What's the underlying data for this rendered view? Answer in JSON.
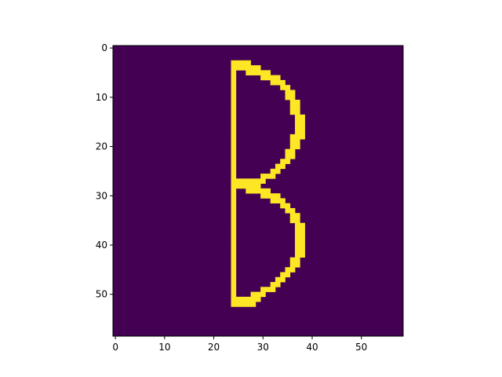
{
  "chart_data": {
    "type": "heatmap",
    "title": "",
    "xlabel": "",
    "ylabel": "",
    "grid": false,
    "shape": [
      59,
      59
    ],
    "colormap": "viridis",
    "xlim": [
      -0.5,
      58.5
    ],
    "ylim": [
      58.5,
      -0.5
    ],
    "x_ticks": [
      0,
      10,
      20,
      30,
      40,
      50
    ],
    "y_ticks": [
      0,
      10,
      20,
      30,
      40,
      50
    ],
    "x_tick_labels": [
      "0",
      "10",
      "20",
      "30",
      "40",
      "50"
    ],
    "y_tick_labels": [
      "0",
      "10",
      "20",
      "30",
      "40",
      "50"
    ],
    "values_legend": {
      "0": "background",
      "1": "stroke"
    },
    "nonzero_rows": [
      {
        "row": 3,
        "cols": [
          24,
          25,
          26,
          27
        ]
      },
      {
        "row": 4,
        "cols": [
          24,
          25,
          26,
          27,
          28,
          29
        ]
      },
      {
        "row": 5,
        "cols": [
          24,
          27,
          28,
          29,
          30,
          31
        ]
      },
      {
        "row": 6,
        "cols": [
          24,
          30,
          31,
          32,
          33
        ]
      },
      {
        "row": 7,
        "cols": [
          24,
          32,
          33,
          34
        ]
      },
      {
        "row": 8,
        "cols": [
          24,
          34,
          35
        ]
      },
      {
        "row": 9,
        "cols": [
          24,
          35,
          36
        ]
      },
      {
        "row": 10,
        "cols": [
          24,
          35,
          36
        ]
      },
      {
        "row": 11,
        "cols": [
          24,
          36,
          37
        ]
      },
      {
        "row": 12,
        "cols": [
          24,
          36,
          37
        ]
      },
      {
        "row": 13,
        "cols": [
          24,
          36,
          37
        ]
      },
      {
        "row": 14,
        "cols": [
          24,
          37,
          38
        ]
      },
      {
        "row": 15,
        "cols": [
          24,
          37,
          38
        ]
      },
      {
        "row": 16,
        "cols": [
          24,
          37,
          38
        ]
      },
      {
        "row": 17,
        "cols": [
          24,
          37,
          38
        ]
      },
      {
        "row": 18,
        "cols": [
          24,
          36,
          37,
          38
        ]
      },
      {
        "row": 19,
        "cols": [
          24,
          36,
          37
        ]
      },
      {
        "row": 20,
        "cols": [
          24,
          36,
          37
        ]
      },
      {
        "row": 21,
        "cols": [
          24,
          35,
          36
        ]
      },
      {
        "row": 22,
        "cols": [
          24,
          35,
          36
        ]
      },
      {
        "row": 23,
        "cols": [
          24,
          34,
          35
        ]
      },
      {
        "row": 24,
        "cols": [
          24,
          33,
          34
        ]
      },
      {
        "row": 25,
        "cols": [
          24,
          32,
          33
        ]
      },
      {
        "row": 26,
        "cols": [
          24,
          30,
          31,
          32
        ]
      },
      {
        "row": 27,
        "cols": [
          24,
          25,
          26,
          27,
          28,
          29,
          30
        ]
      },
      {
        "row": 28,
        "cols": [
          24,
          25,
          26,
          27,
          28,
          29
        ]
      },
      {
        "row": 29,
        "cols": [
          24,
          27,
          28,
          29,
          30,
          31
        ]
      },
      {
        "row": 30,
        "cols": [
          24,
          30,
          31,
          32,
          33
        ]
      },
      {
        "row": 31,
        "cols": [
          24,
          32,
          33,
          34
        ]
      },
      {
        "row": 32,
        "cols": [
          24,
          34,
          35
        ]
      },
      {
        "row": 33,
        "cols": [
          24,
          35,
          36
        ]
      },
      {
        "row": 34,
        "cols": [
          24,
          36,
          37
        ]
      },
      {
        "row": 35,
        "cols": [
          24,
          36,
          37
        ]
      },
      {
        "row": 36,
        "cols": [
          24,
          37,
          38
        ]
      },
      {
        "row": 37,
        "cols": [
          24,
          37,
          38
        ]
      },
      {
        "row": 38,
        "cols": [
          24,
          37,
          38
        ]
      },
      {
        "row": 39,
        "cols": [
          24,
          37,
          38
        ]
      },
      {
        "row": 40,
        "cols": [
          24,
          37,
          38
        ]
      },
      {
        "row": 41,
        "cols": [
          24,
          37,
          38
        ]
      },
      {
        "row": 42,
        "cols": [
          24,
          37,
          38
        ]
      },
      {
        "row": 43,
        "cols": [
          24,
          36,
          37
        ]
      },
      {
        "row": 44,
        "cols": [
          24,
          36,
          37
        ]
      },
      {
        "row": 45,
        "cols": [
          24,
          35,
          36
        ]
      },
      {
        "row": 46,
        "cols": [
          24,
          34,
          35
        ]
      },
      {
        "row": 47,
        "cols": [
          24,
          33,
          34
        ]
      },
      {
        "row": 48,
        "cols": [
          24,
          32,
          33
        ]
      },
      {
        "row": 49,
        "cols": [
          24,
          30,
          31,
          32
        ]
      },
      {
        "row": 50,
        "cols": [
          24,
          28,
          29,
          30
        ]
      },
      {
        "row": 51,
        "cols": [
          24,
          25,
          26,
          27,
          28,
          29
        ]
      },
      {
        "row": 52,
        "cols": [
          24,
          25,
          26,
          27,
          28
        ]
      }
    ]
  },
  "colors": {
    "background_cell": "#440154",
    "foreground_cell": "#fde725",
    "axis": "#000000",
    "figure_background": "#ffffff"
  }
}
